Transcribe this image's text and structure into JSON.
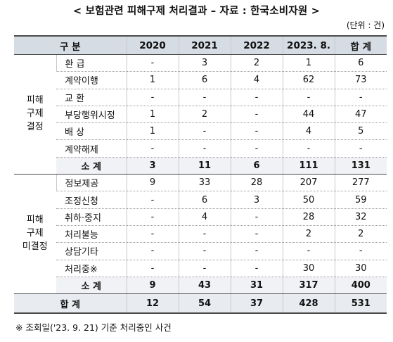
{
  "title": "< 보험관련 피해구제 처리결과 – 자료 : 한국소비자원 >",
  "unit": "(단위 : 건)",
  "header": {
    "category": "구  분",
    "years": [
      "2020",
      "2021",
      "2022",
      "2023. 8.",
      "합  계"
    ]
  },
  "groups": [
    {
      "name_lines": [
        "피해",
        "구제",
        "결정"
      ],
      "rows": [
        {
          "label": "환    급",
          "values": [
            "-",
            "3",
            "2",
            "1",
            "6"
          ]
        },
        {
          "label": "계약이행",
          "values": [
            "1",
            "6",
            "4",
            "62",
            "73"
          ]
        },
        {
          "label": "교    환",
          "values": [
            "-",
            "-",
            "-",
            "-",
            "-"
          ]
        },
        {
          "label": "부당행위시정",
          "values": [
            "1",
            "2",
            "-",
            "44",
            "47"
          ]
        },
        {
          "label": "배    상",
          "values": [
            "1",
            "-",
            "-",
            "4",
            "5"
          ]
        },
        {
          "label": "계약해제",
          "values": [
            "-",
            "-",
            "-",
            "-",
            "-"
          ]
        }
      ],
      "subtotal": {
        "label": "소    계",
        "values": [
          "3",
          "11",
          "6",
          "111",
          "131"
        ]
      }
    },
    {
      "name_lines": [
        "피해",
        "구제",
        "미결정"
      ],
      "rows": [
        {
          "label": "정보제공",
          "values": [
            "9",
            "33",
            "28",
            "207",
            "277"
          ]
        },
        {
          "label": "조정신청",
          "values": [
            "-",
            "6",
            "3",
            "50",
            "59"
          ]
        },
        {
          "label": "취하·중지",
          "values": [
            "-",
            "4",
            "-",
            "28",
            "32"
          ]
        },
        {
          "label": "처리불능",
          "values": [
            "-",
            "-",
            "-",
            "2",
            "2"
          ]
        },
        {
          "label": "상담기타",
          "values": [
            "-",
            "-",
            "-",
            "-",
            "-"
          ]
        },
        {
          "label": "처리중※",
          "values": [
            "-",
            "-",
            "-",
            "30",
            "30"
          ]
        }
      ],
      "subtotal": {
        "label": "소    계",
        "values": [
          "9",
          "43",
          "31",
          "317",
          "400"
        ]
      }
    }
  ],
  "total": {
    "label": "합    계",
    "values": [
      "12",
      "54",
      "37",
      "428",
      "531"
    ]
  },
  "note": "※ 조회일('23. 9. 21) 기준 처리중인 사건"
}
